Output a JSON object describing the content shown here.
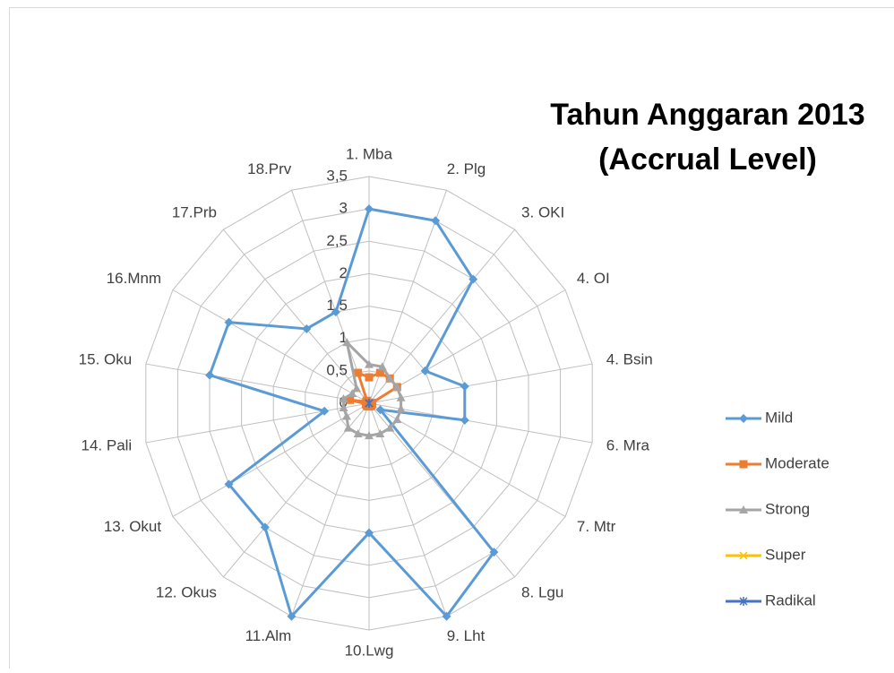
{
  "chart_data": {
    "type": "radar",
    "title": [
      "Tahun Anggaran 2013",
      "(Accrual Level)"
    ],
    "categories": [
      "1. Mba",
      "2. Plg",
      "3. OKI",
      "4. OI",
      "4. Bsin",
      "6. Mra",
      "7. Mtr",
      "8. Lgu",
      "9. Lht",
      "10.Lwg",
      "11.Alm",
      "12. Okus",
      "13. Okut",
      "14. Pali",
      "15. Oku",
      "16.Mnm",
      "17.Prb",
      "18.Prv"
    ],
    "rlim": [
      0,
      3.5
    ],
    "rticks": [
      0,
      {
        "value": 0.5,
        "label": "0,5"
      },
      1,
      {
        "value": 1.5,
        "label": "1,5"
      },
      2,
      {
        "value": 2.5,
        "label": "2,5"
      },
      3,
      {
        "value": 3.5,
        "label": "3,5"
      }
    ],
    "grid": true,
    "legend": "right",
    "series": [
      {
        "name": "Mild",
        "color": "#5b9bd5",
        "marker": "diamond",
        "values": [
          3,
          3,
          2.5,
          1,
          1.5,
          1.5,
          0.2,
          3,
          3.5,
          2,
          3.5,
          2.5,
          2.5,
          0.7,
          2.5,
          2.5,
          1.5,
          1.5
        ]
      },
      {
        "name": "Moderate",
        "color": "#ed7d31",
        "marker": "square",
        "values": [
          0.4,
          0.5,
          0.5,
          0.5,
          0.05,
          0.05,
          0.05,
          0.05,
          0.05,
          0.05,
          0.05,
          0.05,
          0.05,
          0.05,
          0.3,
          0.05,
          0.05,
          0.5
        ]
      },
      {
        "name": "Strong",
        "color": "#a5a5a5",
        "marker": "triangle",
        "values": [
          0.6,
          0.6,
          0.5,
          0.5,
          0.5,
          0.5,
          0.5,
          0.5,
          0.5,
          0.5,
          0.5,
          0.5,
          0.4,
          0.4,
          0.4,
          0.3,
          0.3,
          1
        ]
      },
      {
        "name": "Super",
        "color": "#ffc000",
        "marker": "x",
        "values": [
          0,
          0,
          0,
          0,
          0,
          0,
          0,
          0,
          0,
          0,
          0,
          0,
          0,
          0,
          0,
          0,
          0,
          0
        ]
      },
      {
        "name": "Radikal",
        "color": "#4472c4",
        "marker": "star",
        "values": [
          0,
          0,
          0,
          0,
          0,
          0,
          0,
          0,
          0,
          0,
          0,
          0,
          0,
          0,
          0,
          0,
          0,
          0
        ]
      }
    ]
  }
}
